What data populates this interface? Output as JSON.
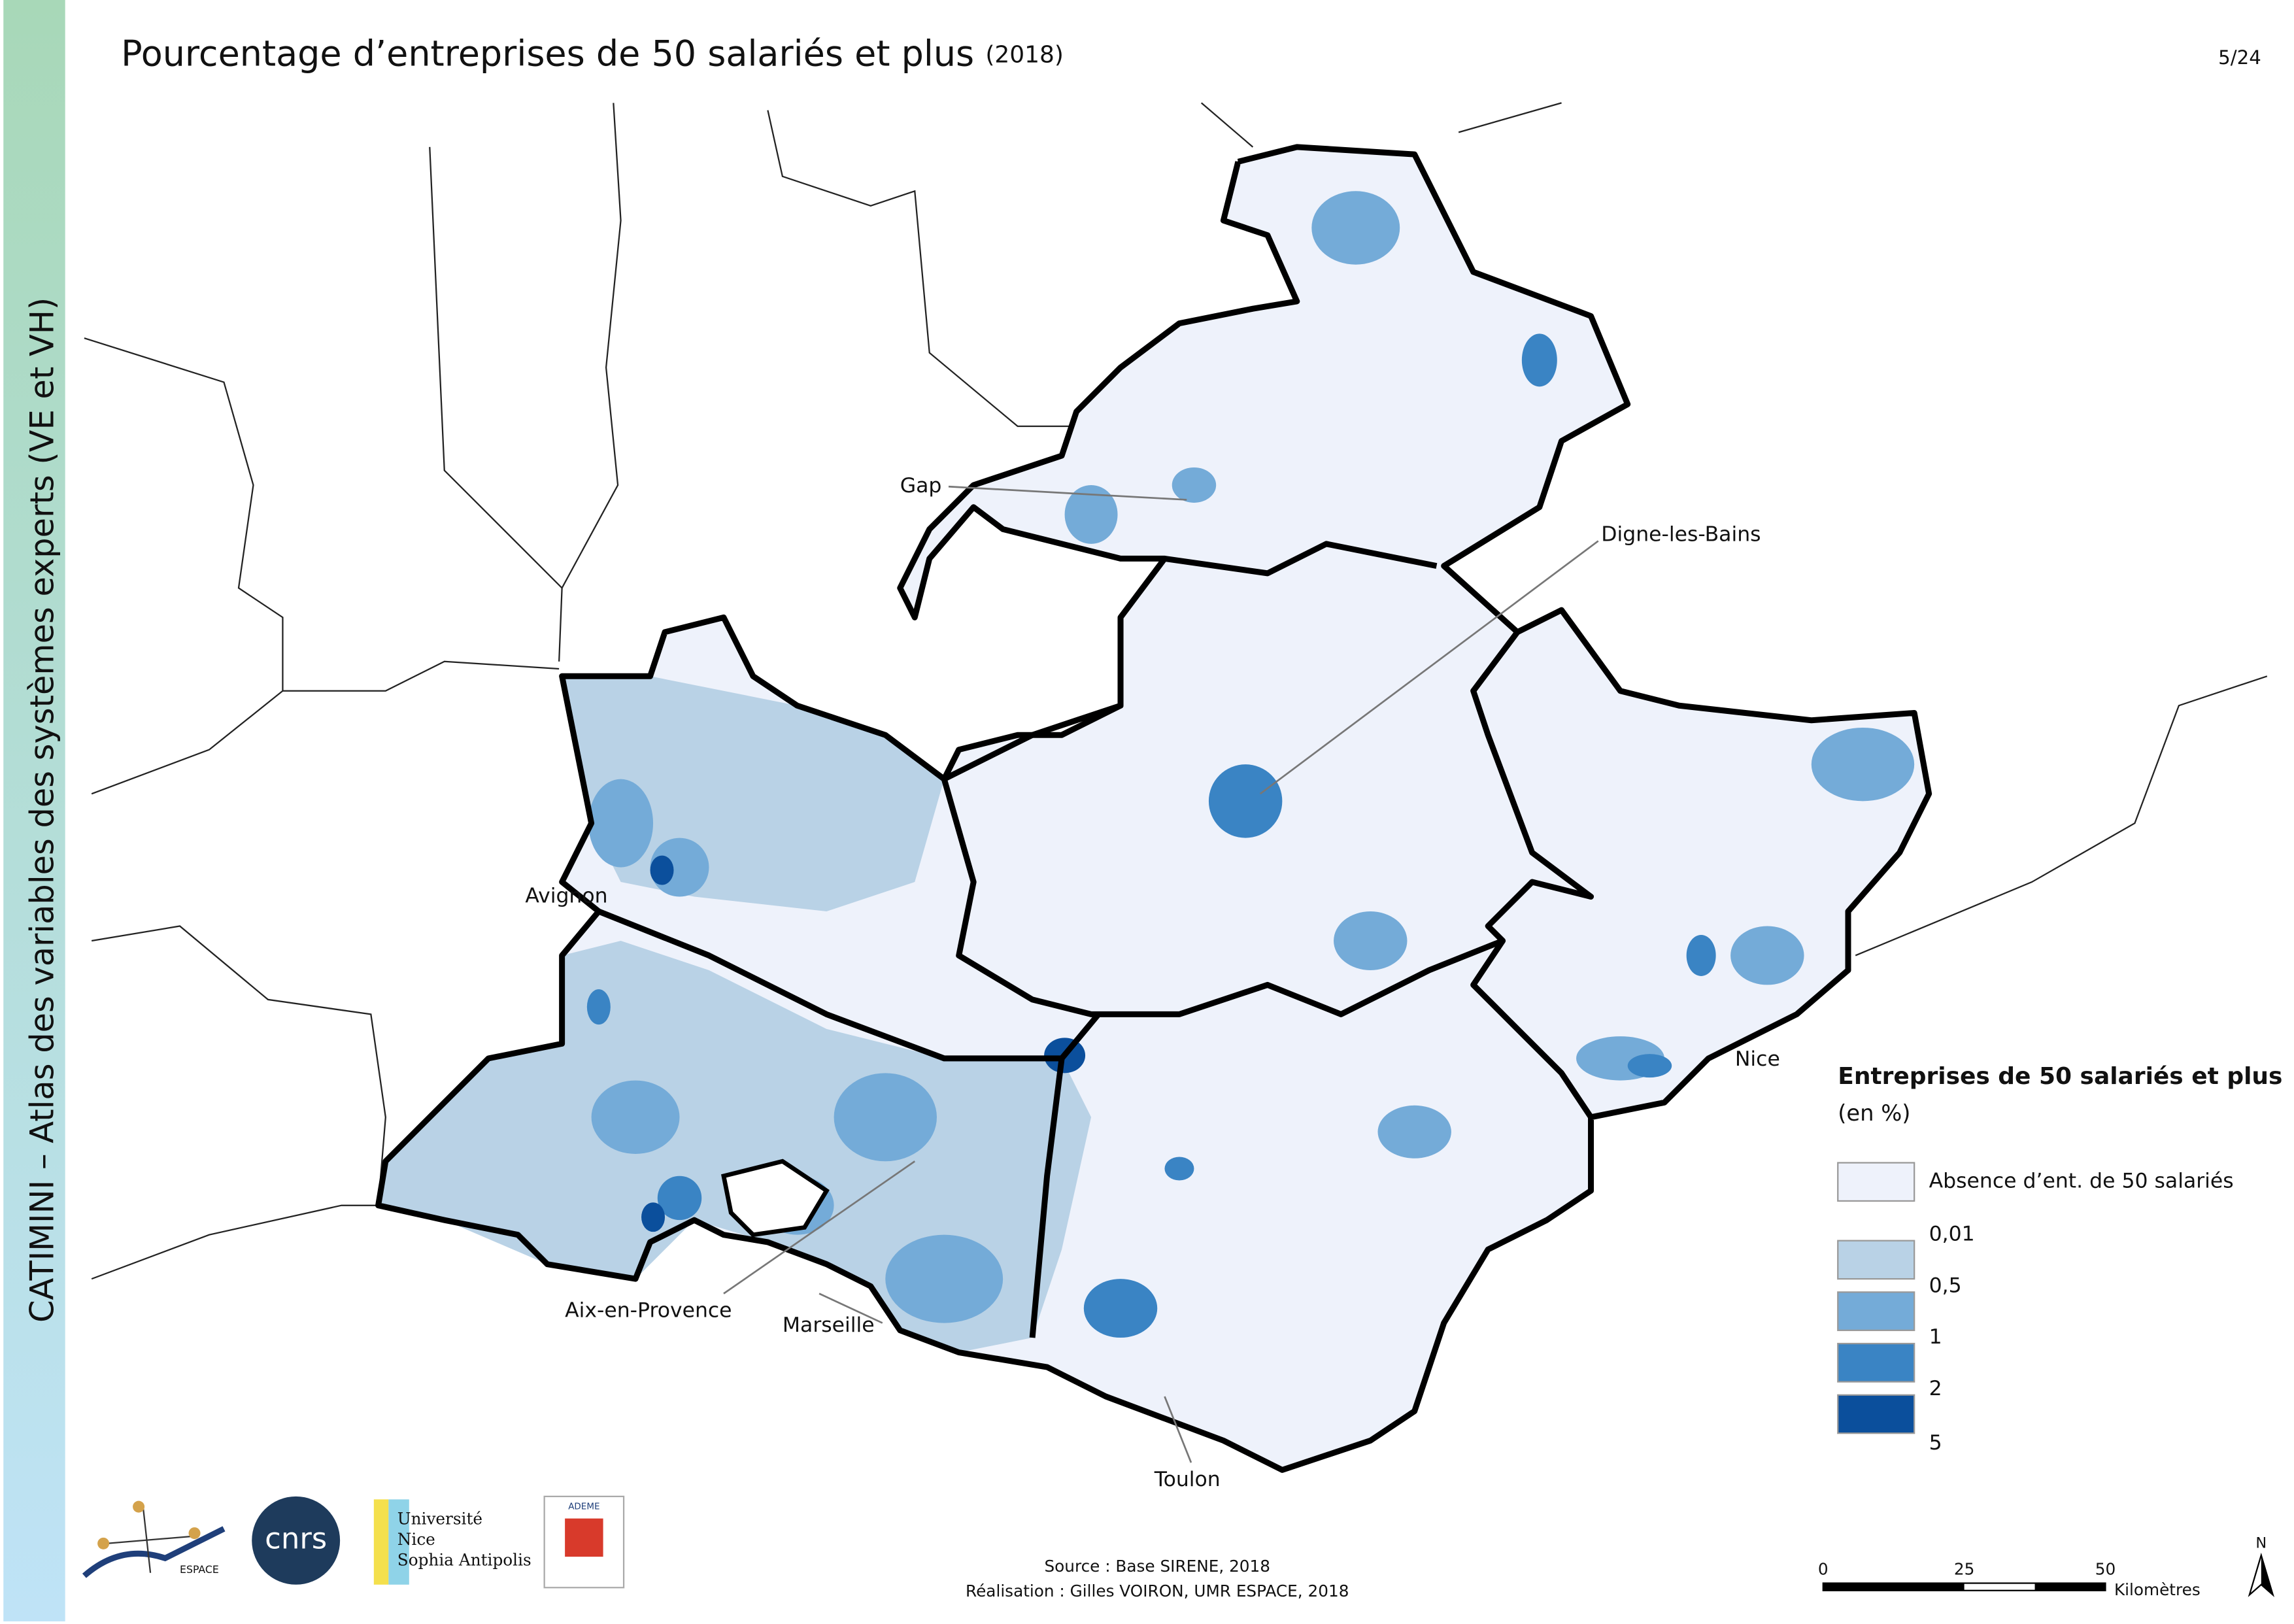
{
  "header": {
    "title": "Pourcentage d’entreprises de 50 salariés et plus",
    "year": "(2018)",
    "page": "5/24"
  },
  "sidebar": "CATIMINI – Atlas des variables des systèmes experts (VE et VH)",
  "cities": [
    "Gap",
    "Digne-les-Bains",
    "Avignon",
    "Nice",
    "Aix-en-Provence",
    "Marseille",
    "Toulon"
  ],
  "legend": {
    "title": "Entreprises de 50 salariés et plus",
    "subtitle": "(en %)",
    "absence": "Absence d’ent. de 50 salariés",
    "breaks": [
      "0,01",
      "0,5",
      "1",
      "2",
      "5"
    ]
  },
  "scale": {
    "ticks": [
      "0",
      "25",
      "50"
    ],
    "unit": "Kilomètres"
  },
  "north": "N",
  "source": "Source : Base SIRENE, 2018",
  "credit": "Réalisation : Gilles VOIRON, UMR ESPACE, 2018",
  "logos": {
    "espace": "ESPACE",
    "cnrs": "cnrs",
    "univ1": "Université",
    "univ2": "Nice",
    "univ3": "Sophia Antipolis",
    "ademe": "ADEME"
  }
}
